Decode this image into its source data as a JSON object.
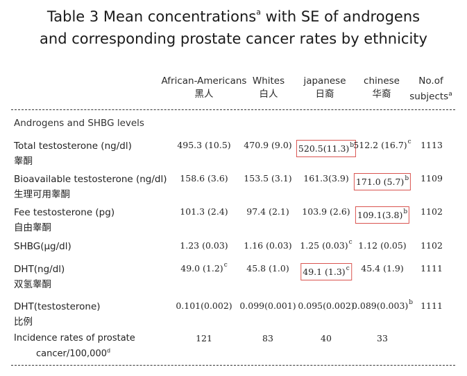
{
  "title": {
    "line1_a": "Table 3 Mean concentrations",
    "line1_sup": "a",
    "line1_b": " with SE of androgens",
    "line2": "and corresponding prostate cancer rates by  ethnicity"
  },
  "headers": [
    {
      "en": "African-Americans",
      "zh": "黑人"
    },
    {
      "en": "Whites",
      "zh": "白人"
    },
    {
      "en": "japanese",
      "zh": "日裔"
    },
    {
      "en": "chinese",
      "zh": "华裔"
    },
    {
      "en": "No.of",
      "zh": "subjects",
      "sup": "a"
    }
  ],
  "section_label": "Androgens and SHBG levels",
  "rows": [
    {
      "en": "Total testosterone (ng/dl)",
      "zh": "睾酮",
      "cells": [
        {
          "v": "495.3 (10.5)"
        },
        {
          "v": "470.9 (9.0)"
        },
        {
          "v": "520.5(11.3)",
          "sup": "b",
          "boxed": true
        },
        {
          "v": "512.2 (16.7)",
          "sup": "c"
        },
        {
          "v": "1113"
        }
      ]
    },
    {
      "en": "Bioavailable  testosterone (ng/dl)",
      "zh": "生理可用睾酮",
      "cells": [
        {
          "v": "158.6 (3.6)"
        },
        {
          "v": "153.5 (3.1)"
        },
        {
          "v": "161.3(3.9)"
        },
        {
          "v": "171.0 (5.7)",
          "sup": "b",
          "boxed": true
        },
        {
          "v": "1109"
        }
      ]
    },
    {
      "en": "Fee testosterone (pg)",
      "zh": "自由睾酮",
      "cells": [
        {
          "v": "101.3 (2.4)"
        },
        {
          "v": "97.4 (2.1)"
        },
        {
          "v": "103.9 (2.6)"
        },
        {
          "v": "109.1(3.8)",
          "sup": "b",
          "boxed": true
        },
        {
          "v": "1102"
        }
      ]
    },
    {
      "en": "SHBG(μg/dl)",
      "zh": "",
      "cells": [
        {
          "v": "1.23 (0.03)"
        },
        {
          "v": "1.16 (0.03)"
        },
        {
          "v": "1.25 (0.03)",
          "sup": "c"
        },
        {
          "v": "1.12 (0.05)"
        },
        {
          "v": "1102"
        }
      ]
    },
    {
      "en": "DHT(ng/dl)",
      "zh": "双氢睾酮",
      "cells": [
        {
          "v": "49.0 (1.2)",
          "sup": "c"
        },
        {
          "v": "45.8 (1.0)"
        },
        {
          "v": "49.1 (1.3)",
          "sup": "c",
          "boxed": true
        },
        {
          "v": "45.4 (1.9)"
        },
        {
          "v": "1111"
        }
      ]
    },
    {
      "en": "DHT(testosterone)",
      "zh": "比例",
      "cells": [
        {
          "v": "0.101(0.002)"
        },
        {
          "v": "0.099(0.001)"
        },
        {
          "v": "0.095(0.002)"
        },
        {
          "v": "0.089(0.003)",
          "sup": "b"
        },
        {
          "v": "1111"
        }
      ]
    }
  ],
  "incidence": {
    "line1": "Incidence rates of prostate",
    "line2": "cancer/100,000",
    "sup": "d",
    "cells": [
      {
        "v": "121"
      },
      {
        "v": "83"
      },
      {
        "v": "40"
      },
      {
        "v": "33"
      }
    ]
  },
  "colors": {
    "highlight_box": "#d9534f"
  }
}
